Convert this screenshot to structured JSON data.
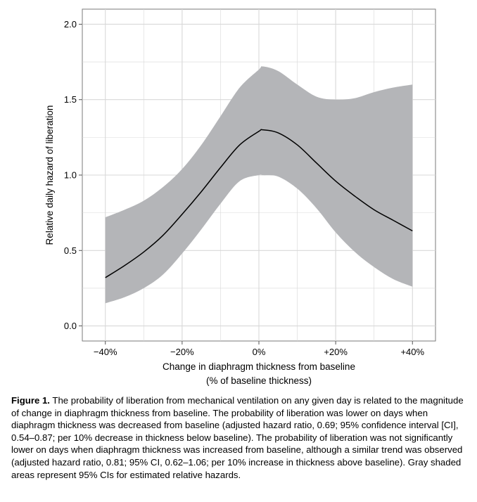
{
  "chart_data": {
    "type": "line",
    "xlabel_line1": "Change in diaphragm thickness from baseline",
    "xlabel_line2": "(% of baseline thickness)",
    "ylabel": "Relative daily hazard of liberation",
    "xlim": [
      -46,
      46
    ],
    "ylim": [
      -0.1,
      2.1
    ],
    "x_ticks": [
      {
        "value": -40,
        "label": "−40%"
      },
      {
        "value": -20,
        "label": "−20%"
      },
      {
        "value": 0,
        "label": "0%"
      },
      {
        "value": 20,
        "label": "+20%"
      },
      {
        "value": 40,
        "label": "+40%"
      }
    ],
    "y_ticks": [
      {
        "value": 0.0,
        "label": "0.0"
      },
      {
        "value": 0.5,
        "label": "0.5"
      },
      {
        "value": 1.0,
        "label": "1.0"
      },
      {
        "value": 1.5,
        "label": "1.5"
      },
      {
        "value": 2.0,
        "label": "2.0"
      }
    ],
    "grid": true,
    "series": [
      {
        "x": [
          -40,
          -35,
          -30,
          -25,
          -20,
          -15,
          -10,
          -5,
          0,
          1,
          5,
          10,
          15,
          20,
          25,
          30,
          35,
          40
        ],
        "y": [
          0.32,
          0.4,
          0.49,
          0.6,
          0.74,
          0.89,
          1.05,
          1.2,
          1.29,
          1.3,
          1.28,
          1.2,
          1.08,
          0.96,
          0.86,
          0.77,
          0.7,
          0.63
        ],
        "color": "#000000"
      }
    ],
    "band": {
      "x": [
        -40,
        -35,
        -30,
        -25,
        -20,
        -15,
        -10,
        -5,
        0,
        1,
        5,
        10,
        15,
        20,
        25,
        30,
        35,
        40
      ],
      "lower": [
        0.15,
        0.19,
        0.25,
        0.34,
        0.48,
        0.64,
        0.81,
        0.96,
        1.0,
        1.0,
        0.99,
        0.91,
        0.78,
        0.62,
        0.49,
        0.39,
        0.31,
        0.26
      ],
      "upper": [
        0.72,
        0.77,
        0.83,
        0.92,
        1.04,
        1.2,
        1.39,
        1.58,
        1.7,
        1.72,
        1.69,
        1.6,
        1.52,
        1.5,
        1.51,
        1.55,
        1.58,
        1.6
      ],
      "color": "#b4b5b8"
    },
    "background": "#ffffff",
    "grid_color": "#d8d8d8"
  },
  "caption": {
    "label": "Figure 1.",
    "text": "The probability of liberation from mechanical ventilation on any given day is related to the magnitude of change in diaphragm thickness from baseline. The probability of liberation was lower on days when diaphragm thickness was decreased from baseline (adjusted hazard ratio, 0.69; 95% confidence interval [CI], 0.54–0.87; per 10% decrease in thickness below baseline). The probability of liberation was not significantly lower on days when diaphragm thickness was increased from baseline, although a similar trend was observed (adjusted hazard ratio, 0.81; 95% CI, 0.62–1.06; per 10% increase in thickness above baseline). Gray shaded areas represent 95% CIs for estimated relative hazards."
  }
}
